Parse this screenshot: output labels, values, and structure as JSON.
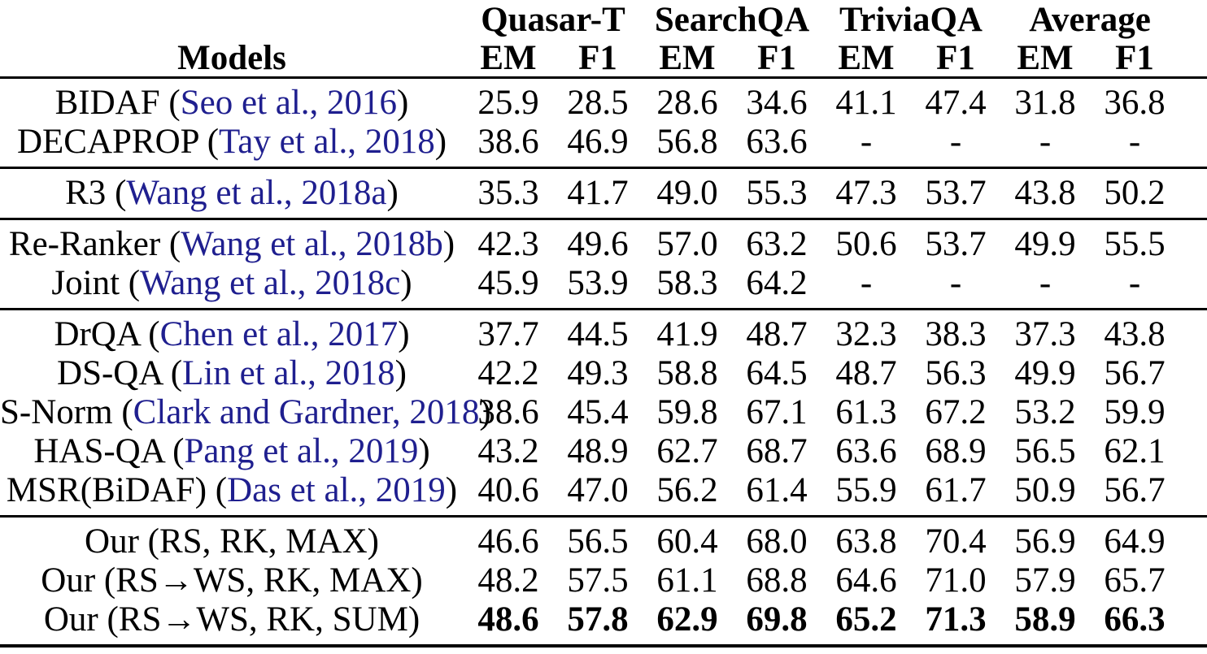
{
  "colors": {
    "citation": "#1f1f8f",
    "text": "#000000",
    "background": "#ffffff",
    "rule": "#000000"
  },
  "table": {
    "models_header": "Models",
    "groups": [
      {
        "label": "Quasar-T"
      },
      {
        "label": "SearchQA"
      },
      {
        "label": "TriviaQA"
      },
      {
        "label": "Average"
      }
    ],
    "metric_headers": [
      "EM",
      "F1",
      "EM",
      "F1",
      "EM",
      "F1",
      "EM",
      "F1"
    ],
    "sections": [
      {
        "rows": [
          {
            "model": "BIDAF",
            "cite": "Seo et al., 2016",
            "values": [
              "25.9",
              "28.5",
              "28.6",
              "34.6",
              "41.1",
              "47.4",
              "31.8",
              "36.8"
            ]
          },
          {
            "model": "DECAPROP",
            "cite": "Tay et al., 2018",
            "values": [
              "38.6",
              "46.9",
              "56.8",
              "63.6",
              "-",
              "-",
              "-",
              "-"
            ]
          }
        ]
      },
      {
        "rows": [
          {
            "model": "R3",
            "cite": "Wang et al., 2018a",
            "values": [
              "35.3",
              "41.7",
              "49.0",
              "55.3",
              "47.3",
              "53.7",
              "43.8",
              "50.2"
            ]
          }
        ]
      },
      {
        "rows": [
          {
            "model": "Re-Ranker",
            "cite": "Wang et al., 2018b",
            "values": [
              "42.3",
              "49.6",
              "57.0",
              "63.2",
              "50.6",
              "53.7",
              "49.9",
              "55.5"
            ]
          },
          {
            "model": "Joint",
            "cite": "Wang et al., 2018c",
            "values": [
              "45.9",
              "53.9",
              "58.3",
              "64.2",
              "-",
              "-",
              "-",
              "-"
            ]
          }
        ]
      },
      {
        "rows": [
          {
            "model": "DrQA",
            "cite": "Chen et al., 2017",
            "values": [
              "37.7",
              "44.5",
              "41.9",
              "48.7",
              "32.3",
              "38.3",
              "37.3",
              "43.8"
            ]
          },
          {
            "model": "DS-QA",
            "cite": "Lin et al., 2018",
            "values": [
              "42.2",
              "49.3",
              "58.8",
              "64.5",
              "48.7",
              "56.3",
              "49.9",
              "56.7"
            ]
          },
          {
            "model": "S-Norm",
            "cite": "Clark and Gardner, 2018",
            "values": [
              "38.6",
              "45.4",
              "59.8",
              "67.1",
              "61.3",
              "67.2",
              "53.2",
              "59.9"
            ]
          },
          {
            "model": "HAS-QA",
            "cite": "Pang et al., 2019",
            "values": [
              "43.2",
              "48.9",
              "62.7",
              "68.7",
              "63.6",
              "68.9",
              "56.5",
              "62.1"
            ]
          },
          {
            "model": "MSR(BiDAF)",
            "cite": "Das et al., 2019",
            "values": [
              "40.6",
              "47.0",
              "56.2",
              "61.4",
              "55.9",
              "61.7",
              "50.9",
              "56.7"
            ]
          }
        ]
      },
      {
        "rows": [
          {
            "model": "Our (RS, RK, MAX)",
            "cite": null,
            "values": [
              "46.6",
              "56.5",
              "60.4",
              "68.0",
              "63.8",
              "70.4",
              "56.9",
              "64.9"
            ]
          },
          {
            "model": "Our (RS→WS, RK, MAX)",
            "cite": null,
            "values": [
              "48.2",
              "57.5",
              "61.1",
              "68.8",
              "64.6",
              "71.0",
              "57.9",
              "65.7"
            ]
          },
          {
            "model": "Our (RS→WS, RK, SUM)",
            "cite": null,
            "values": [
              "48.6",
              "57.8",
              "62.9",
              "69.8",
              "65.2",
              "71.3",
              "58.9",
              "66.3"
            ],
            "bold_values": true
          }
        ]
      }
    ]
  }
}
